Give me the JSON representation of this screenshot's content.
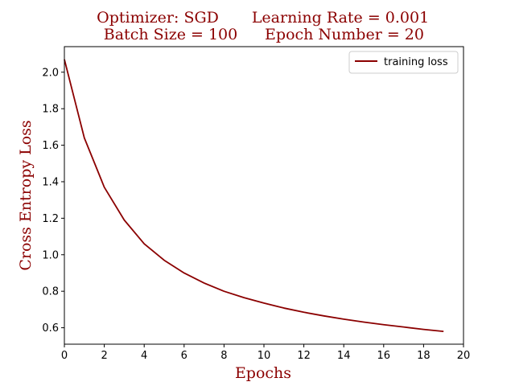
{
  "title": {
    "line1_left": "Optimizer: SGD",
    "line1_right": "Learning Rate = 0.001",
    "line2_left": "Batch Size = 100",
    "line2_right": "Epoch Number = 20"
  },
  "colors": {
    "series": "#8b0000",
    "title": "#8b0000",
    "axis": "#000000"
  },
  "chart_data": {
    "type": "line",
    "xlabel": "Epochs",
    "ylabel": "Cross Entropy Loss",
    "xlim": [
      0,
      20
    ],
    "ylim": [
      0.51,
      2.14
    ],
    "xticks": [
      0,
      2,
      4,
      6,
      8,
      10,
      12,
      14,
      16,
      18,
      20
    ],
    "yticks": [
      0.6,
      0.8,
      1.0,
      1.2,
      1.4,
      1.6,
      1.8,
      2.0
    ],
    "xtick_labels": [
      "0",
      "2",
      "4",
      "6",
      "8",
      "10",
      "12",
      "14",
      "16",
      "18",
      "20"
    ],
    "ytick_labels": [
      "0.6",
      "0.8",
      "1.0",
      "1.2",
      "1.4",
      "1.6",
      "1.8",
      "2.0"
    ],
    "grid": false,
    "legend_position": "top-right",
    "series": [
      {
        "name": "training loss",
        "x": [
          0,
          1,
          2,
          3,
          4,
          5,
          6,
          7,
          8,
          9,
          10,
          11,
          12,
          13,
          14,
          15,
          16,
          17,
          18,
          19
        ],
        "y": [
          2.07,
          1.64,
          1.37,
          1.19,
          1.06,
          0.97,
          0.9,
          0.845,
          0.8,
          0.765,
          0.735,
          0.708,
          0.685,
          0.665,
          0.647,
          0.631,
          0.617,
          0.604,
          0.591,
          0.58
        ]
      }
    ]
  }
}
